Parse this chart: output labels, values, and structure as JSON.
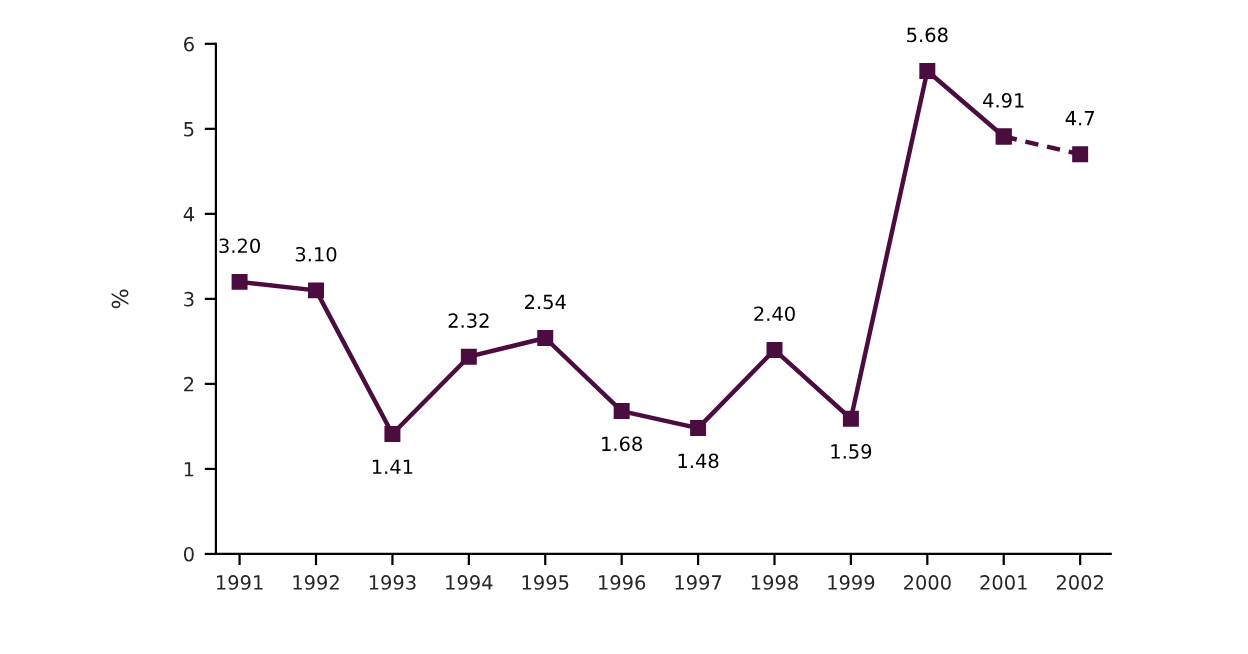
{
  "chart_data": {
    "type": "line",
    "ylabel": "%",
    "categories": [
      "1991",
      "1992",
      "1993",
      "1994",
      "1995",
      "1996",
      "1997",
      "1998",
      "1999",
      "2000",
      "2001",
      "2002"
    ],
    "series": [
      {
        "color": "#4b0c3f",
        "line_style": "solid",
        "values": [
          3.2,
          3.1,
          1.41,
          2.32,
          2.54,
          1.68,
          1.48,
          2.4,
          1.59,
          5.68,
          4.91,
          null
        ],
        "value_labels": [
          "3.20",
          "3.10",
          "1.41",
          "2.32",
          "2.54",
          "1.68",
          "1.48",
          "2.40",
          "1.59",
          "5.68",
          "4.91",
          null
        ]
      },
      {
        "color": "#4b0c3f",
        "line_style": "dashed",
        "values": [
          null,
          null,
          null,
          null,
          null,
          null,
          null,
          null,
          null,
          null,
          4.91,
          4.7
        ],
        "value_labels": [
          null,
          null,
          null,
          null,
          null,
          null,
          null,
          null,
          null,
          null,
          null,
          "4.7"
        ]
      }
    ],
    "ylim": [
      0,
      6
    ],
    "yticks": [
      0,
      1,
      2,
      3,
      4,
      5,
      6
    ],
    "grid": false,
    "marker": "square"
  }
}
